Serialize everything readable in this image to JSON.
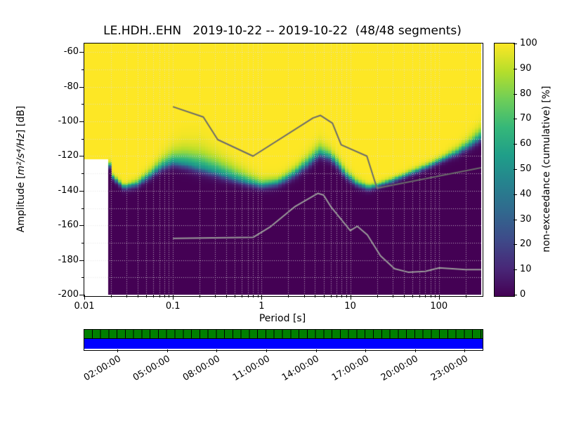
{
  "chart_data": {
    "type": "heatmap",
    "title": "LE.HDH..EHN   2019-10-22 -- 2019-10-22  (48/48 segments)",
    "station": "LE.HDH..EHN",
    "date_start": "2019-10-22",
    "date_end": "2019-10-22",
    "segments_used": 48,
    "segments_total": 48,
    "xlabel": "Period [s]",
    "ylabel": {
      "pre": "Amplitude [",
      "math": "m²/s⁴/Hz",
      "post": "] [dB]"
    },
    "x_scale": "log",
    "xlim": [
      0.01,
      300
    ],
    "ylim": [
      -200,
      -55
    ],
    "x_tick_labels": [
      "0.01",
      "0.1",
      "1",
      "10",
      "100"
    ],
    "x_tick_values": [
      0.01,
      0.1,
      1,
      10,
      100
    ],
    "y_tick_values": [
      -60,
      -80,
      -100,
      -120,
      -140,
      -160,
      -180,
      -200
    ],
    "grid": true,
    "colorbar": {
      "label": "non-exceedance (cumulative) [%]",
      "tick_values": [
        0,
        10,
        20,
        30,
        40,
        50,
        60,
        70,
        80,
        90,
        100
      ],
      "colormap": "viridis",
      "colors": [
        "#440154",
        "#482878",
        "#3e4a89",
        "#31688e",
        "#26828e",
        "#1f9e89",
        "#35b779",
        "#6ece58",
        "#b5de2b",
        "#fde725"
      ]
    },
    "heatmap": {
      "min_period": 0.018,
      "no_data_fill_boundary_db": -122,
      "period_step_octaves": 0.125,
      "db_bin_width": 1,
      "median_curve": {
        "periods": [
          0.018,
          0.021,
          0.028,
          0.04,
          0.055,
          0.075,
          0.1,
          0.14,
          0.2,
          0.3,
          0.45,
          0.65,
          1.0,
          1.5,
          2.2,
          3.2,
          4.5,
          6.0,
          7.5,
          9.0,
          12,
          16,
          22,
          32,
          50,
          75,
          110,
          160,
          230,
          300
        ],
        "db": [
          -119,
          -132,
          -138,
          -136,
          -131,
          -126,
          -123.5,
          -124.5,
          -126.5,
          -129,
          -132,
          -134.5,
          -137,
          -135.5,
          -131,
          -125,
          -118.5,
          -120.5,
          -126,
          -131,
          -136,
          -138.5,
          -136.5,
          -133.5,
          -129.5,
          -126,
          -122,
          -118,
          -113,
          -109
        ]
      },
      "spread_up_db": {
        "periods": [
          0.018,
          0.03,
          0.06,
          0.09,
          0.13,
          0.2,
          0.3,
          0.45,
          0.7,
          1.0,
          1.6,
          2.5,
          3.5,
          4.5,
          6,
          8,
          10,
          14,
          20,
          40,
          100,
          200,
          300
        ],
        "db": [
          1.5,
          1.5,
          3,
          5,
          7,
          8,
          7,
          5.5,
          4,
          3,
          2.5,
          3,
          4,
          4.5,
          3.5,
          3,
          2.5,
          2,
          1.5,
          1.5,
          1.8,
          3,
          4.5
        ]
      },
      "spread_down_db": {
        "periods": [
          0.018,
          0.05,
          0.1,
          0.2,
          0.5,
          1,
          3,
          5,
          10,
          20,
          100,
          300
        ],
        "db": [
          1.5,
          2,
          2.5,
          3,
          2.5,
          2,
          2.5,
          2.5,
          2,
          1.5,
          1.5,
          2.5
        ]
      }
    },
    "noise_models": {
      "high": {
        "name": "Peterson NHNM",
        "color": "#6b6b6b",
        "periods": [
          0.1,
          0.22,
          0.32,
          0.8,
          3.8,
          4.6,
          6.3,
          7.9,
          15.4,
          20,
          354.8
        ],
        "db": [
          -91.5,
          -97.4,
          -110.5,
          -120,
          -98,
          -96.5,
          -101,
          -113.5,
          -120,
          -138.5,
          -126
        ]
      },
      "low": {
        "name": "Peterson NLNM",
        "color": "#9a9a9a",
        "periods": [
          0.1,
          0.8,
          1.24,
          2.4,
          4.3,
          5,
          6,
          10,
          12,
          15.6,
          21.9,
          31.6,
          45,
          70,
          101,
          200,
          354.8
        ],
        "db": [
          -167.5,
          -166.9,
          -161,
          -149,
          -141.5,
          -142.5,
          -149,
          -163,
          -160.5,
          -165.5,
          -177.5,
          -185,
          -187,
          -186.5,
          -184.5,
          -185.5,
          -185.5
        ]
      }
    },
    "coverage_bar": {
      "segments": 48,
      "green": "#008000",
      "blue": "#0000ff",
      "hours_span": 24,
      "time_tick_labels": [
        "02:00:00",
        "05:00:00",
        "08:00:00",
        "11:00:00",
        "14:00:00",
        "17:00:00",
        "20:00:00",
        "23:00:00"
      ],
      "time_tick_hours": [
        2,
        5,
        8,
        11,
        14,
        17,
        20,
        23
      ]
    }
  }
}
